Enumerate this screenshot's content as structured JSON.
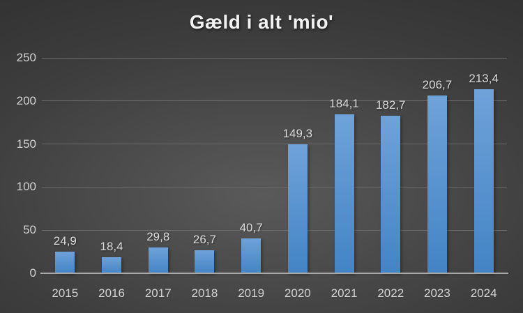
{
  "page": {
    "background_center_color": "#5a5a5a",
    "background_mid_color": "#3d3d3d",
    "background_edge_color": "#252525"
  },
  "chart_data": {
    "type": "bar",
    "title": "Gæld i alt 'mio'",
    "title_color": "#f2f2f2",
    "categories": [
      "2015",
      "2016",
      "2017",
      "2018",
      "2019",
      "2020",
      "2021",
      "2022",
      "2023",
      "2024"
    ],
    "values": [
      24.9,
      18.4,
      29.8,
      26.7,
      40.7,
      149.3,
      184.1,
      182.7,
      206.7,
      213.4
    ],
    "value_labels": [
      "24,9",
      "18,4",
      "29,8",
      "26,7",
      "40,7",
      "149,3",
      "184,1",
      "182,7",
      "206,7",
      "213,4"
    ],
    "xlabel": "",
    "ylabel": "",
    "ylim": [
      0,
      250
    ],
    "yticks": [
      0,
      50,
      100,
      150,
      200,
      250
    ],
    "grid": true,
    "legend": "none",
    "bar_color_top": "#6fa2d9",
    "bar_color_bottom": "#4384c5",
    "gridline_color": "#6a6a6a",
    "axis_line_color": "#a8a8a8",
    "tick_label_color": "#d2d2d2",
    "data_label_color": "#dcdcdc"
  }
}
